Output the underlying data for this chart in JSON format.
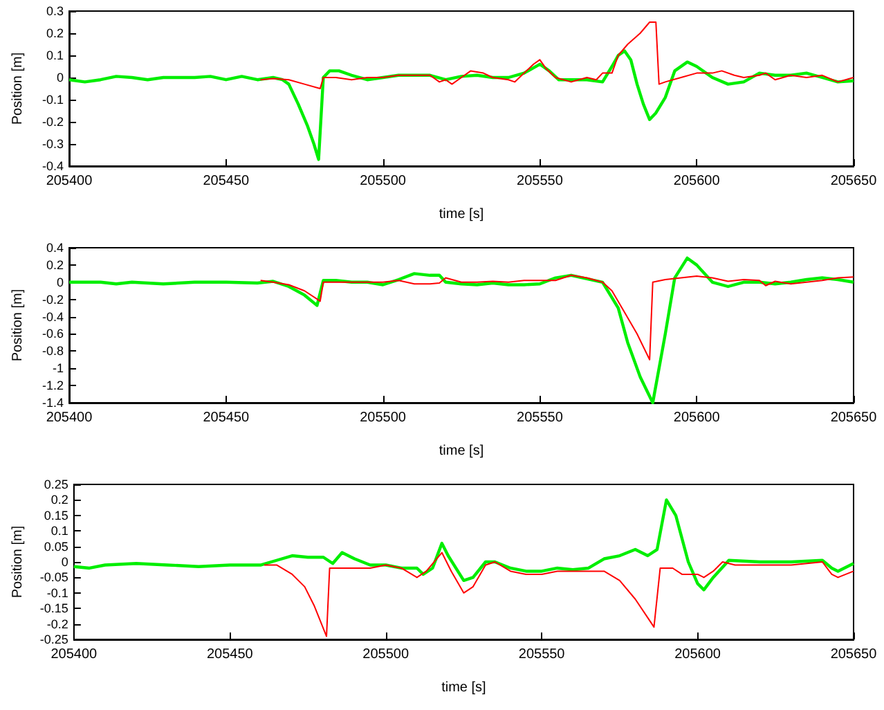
{
  "chart_data": [
    {
      "type": "line",
      "xlabel": "time [s]",
      "ylabel": "Position [m]",
      "xlim": [
        205400,
        205650
      ],
      "xticks": [
        205400,
        205450,
        205500,
        205550,
        205600,
        205650
      ],
      "ylim": [
        -0.4,
        0.3
      ],
      "yticks": [
        -0.4,
        -0.3,
        -0.2,
        -0.1,
        0,
        0.1,
        0.2,
        0.3
      ],
      "grid": false,
      "marker": "none",
      "series": [
        {
          "color": "#00ee00",
          "x": [
            205400,
            205405,
            205410,
            205415,
            205420,
            205425,
            205430,
            205440,
            205445,
            205450,
            205455,
            205460,
            205465,
            205468,
            205470,
            205473,
            205476,
            205478,
            205479.5,
            205481,
            205483,
            205486,
            205490,
            205495,
            205500,
            205505,
            205510,
            205515,
            205520,
            205525,
            205530,
            205535,
            205540,
            205545,
            205550,
            205553,
            205556,
            205560,
            205565,
            205570,
            205573,
            205575,
            205577,
            205579,
            205581,
            205583,
            205585,
            205587,
            205590,
            205593,
            205597,
            205600,
            205605,
            205610,
            205615,
            205620,
            205625,
            205630,
            205635,
            205640,
            205645,
            205650
          ],
          "values": [
            -0.01,
            -0.02,
            -0.01,
            0.005,
            0,
            -0.01,
            0,
            0,
            0.005,
            -0.01,
            0.005,
            -0.01,
            0,
            -0.01,
            -0.03,
            -0.12,
            -0.22,
            -0.3,
            -0.37,
            0,
            0.03,
            0.03,
            0.01,
            -0.01,
            0,
            0.01,
            0.01,
            0.01,
            -0.01,
            0.005,
            0.01,
            0,
            0,
            0.02,
            0.06,
            0.03,
            -0.01,
            -0.01,
            -0.01,
            -0.02,
            0.05,
            0.1,
            0.12,
            0.08,
            -0.03,
            -0.12,
            -0.19,
            -0.16,
            -0.09,
            0.03,
            0.07,
            0.05,
            0,
            -0.03,
            -0.02,
            0.02,
            0.01,
            0.01,
            0.02,
            0,
            -0.02,
            -0.015
          ]
        },
        {
          "color": "#ff0000",
          "x": [
            205461,
            205465,
            205470,
            205475,
            205480,
            205481,
            205485,
            205490,
            205495,
            205500,
            205505,
            205510,
            205515,
            205518,
            205520,
            205522,
            205525,
            205528,
            205532,
            205535,
            205540,
            205542,
            205545,
            205548,
            205550,
            205552,
            205555,
            205560,
            205565,
            205568,
            205570,
            205573,
            205575,
            205578,
            205582,
            205585,
            205587,
            205588,
            205590,
            205595,
            205600,
            205605,
            205608,
            205612,
            205615,
            205620,
            205622,
            205625,
            205630,
            205635,
            205640,
            205645,
            205650
          ],
          "values": [
            -0.01,
            -0.005,
            -0.01,
            -0.03,
            -0.05,
            0,
            0,
            -0.01,
            0,
            0,
            0.01,
            0.01,
            0.01,
            -0.02,
            -0.01,
            -0.03,
            0,
            0.03,
            0.02,
            0,
            -0.01,
            -0.02,
            0.02,
            0.06,
            0.08,
            0.04,
            0,
            -0.02,
            0,
            -0.01,
            0.02,
            0.02,
            0.1,
            0.15,
            0.2,
            0.25,
            0.25,
            -0.03,
            -0.02,
            0,
            0.02,
            0.02,
            0.03,
            0.01,
            0,
            0.01,
            0.02,
            -0.01,
            0.01,
            0,
            0.01,
            -0.02,
            0
          ]
        }
      ]
    },
    {
      "type": "line",
      "xlabel": "time [s]",
      "ylabel": "Position [m]",
      "xlim": [
        205400,
        205650
      ],
      "xticks": [
        205400,
        205450,
        205500,
        205550,
        205600,
        205650
      ],
      "ylim": [
        -1.4,
        0.4
      ],
      "yticks": [
        -1.4,
        -1.2,
        -1,
        -0.8,
        -0.6,
        -0.4,
        -0.2,
        0,
        0.2,
        0.4
      ],
      "grid": false,
      "marker": "none",
      "series": [
        {
          "color": "#00ee00",
          "x": [
            205400,
            205410,
            205415,
            205420,
            205430,
            205440,
            205450,
            205460,
            205465,
            205470,
            205475,
            205479,
            205481,
            205485,
            205490,
            205495,
            205500,
            205505,
            205510,
            205515,
            205518,
            205520,
            205525,
            205530,
            205535,
            205540,
            205545,
            205550,
            205555,
            205560,
            205565,
            205570,
            205575,
            205578,
            205582,
            205586,
            205590,
            205593,
            205597,
            205600,
            205605,
            205610,
            205615,
            205620,
            205625,
            205630,
            205635,
            205640,
            205645,
            205650
          ],
          "values": [
            0,
            0,
            -0.02,
            0,
            -0.02,
            0,
            0,
            -0.01,
            0.01,
            -0.05,
            -0.15,
            -0.27,
            0.02,
            0.02,
            0,
            0,
            -0.03,
            0.03,
            0.1,
            0.08,
            0.08,
            0,
            -0.02,
            -0.03,
            -0.01,
            -0.03,
            -0.03,
            -0.02,
            0.05,
            0.08,
            0.04,
            0,
            -0.3,
            -0.7,
            -1.1,
            -1.4,
            -0.6,
            0.05,
            0.28,
            0.2,
            0,
            -0.05,
            0,
            0,
            -0.02,
            0,
            0.03,
            0.05,
            0.03,
            0
          ]
        },
        {
          "color": "#ff0000",
          "x": [
            205461,
            205465,
            205470,
            205475,
            205480,
            205481,
            205485,
            205490,
            205495,
            205500,
            205505,
            205510,
            205515,
            205518,
            205520,
            205525,
            205530,
            205535,
            205540,
            205545,
            205550,
            205555,
            205560,
            205565,
            205570,
            205573,
            205577,
            205581,
            205585,
            205586,
            205590,
            205595,
            205600,
            205605,
            205610,
            205615,
            205620,
            205622,
            205625,
            205630,
            205635,
            205640,
            205645,
            205650
          ],
          "values": [
            0.02,
            0,
            -0.03,
            -0.1,
            -0.22,
            0,
            0,
            0,
            0,
            0,
            0.02,
            -0.02,
            -0.02,
            -0.01,
            0.05,
            0,
            0,
            0.01,
            0,
            0.02,
            0.02,
            0.02,
            0.08,
            0.05,
            0,
            -0.1,
            -0.35,
            -0.6,
            -0.9,
            0,
            0.03,
            0.05,
            0.07,
            0.05,
            0.01,
            0.03,
            0.02,
            -0.04,
            0.01,
            -0.02,
            0,
            0.02,
            0.05,
            0.06
          ]
        }
      ]
    },
    {
      "type": "line",
      "xlabel": "time [s]",
      "ylabel": "Position [m]",
      "xlim": [
        205400,
        205650
      ],
      "xticks": [
        205400,
        205450,
        205500,
        205550,
        205600,
        205650
      ],
      "ylim": [
        -0.25,
        0.25
      ],
      "yticks": [
        -0.25,
        -0.2,
        -0.15,
        -0.1,
        -0.05,
        0,
        0.05,
        0.1,
        0.15,
        0.2,
        0.25
      ],
      "grid": false,
      "marker": "none",
      "series": [
        {
          "color": "#00ee00",
          "x": [
            205400,
            205405,
            205410,
            205420,
            205430,
            205440,
            205450,
            205460,
            205465,
            205470,
            205475,
            205480,
            205483,
            205486,
            205490,
            205495,
            205500,
            205505,
            205510,
            205512,
            205515,
            205518,
            205520,
            205525,
            205528,
            205532,
            205535,
            205540,
            205545,
            205550,
            205555,
            205560,
            205565,
            205570,
            205575,
            205580,
            205584,
            205587,
            205590,
            205593,
            205597,
            205600,
            205602,
            205605,
            205610,
            205620,
            205630,
            205640,
            205643,
            205645,
            205650
          ],
          "values": [
            -0.015,
            -0.02,
            -0.01,
            -0.005,
            -0.01,
            -0.015,
            -0.01,
            -0.01,
            0.005,
            0.02,
            0.015,
            0.015,
            -0.005,
            0.03,
            0.01,
            -0.01,
            -0.01,
            -0.02,
            -0.02,
            -0.04,
            -0.02,
            0.06,
            0.02,
            -0.06,
            -0.05,
            0,
            0,
            -0.02,
            -0.03,
            -0.03,
            -0.02,
            -0.025,
            -0.02,
            0.01,
            0.02,
            0.04,
            0.02,
            0.04,
            0.2,
            0.15,
            0,
            -0.07,
            -0.09,
            -0.05,
            0.005,
            0,
            0,
            0.005,
            -0.02,
            -0.03,
            -0.005
          ]
        },
        {
          "color": "#ff0000",
          "x": [
            205461,
            205465,
            205470,
            205474,
            205477,
            205481,
            205482,
            205488,
            205495,
            205500,
            205505,
            205510,
            205513,
            205518,
            205521,
            205525,
            205528,
            205532,
            205535,
            205540,
            205545,
            205550,
            205555,
            205560,
            205565,
            205570,
            205575,
            205580,
            205584,
            205586,
            205588,
            205592,
            205595,
            205600,
            205602,
            205605,
            205608,
            205612,
            205620,
            205630,
            205640,
            205643,
            205645,
            205650
          ],
          "values": [
            -0.01,
            -0.01,
            -0.04,
            -0.08,
            -0.14,
            -0.24,
            -0.02,
            -0.02,
            -0.02,
            -0.01,
            -0.02,
            -0.05,
            -0.03,
            0.03,
            -0.03,
            -0.1,
            -0.08,
            -0.01,
            0,
            -0.03,
            -0.04,
            -0.04,
            -0.03,
            -0.03,
            -0.03,
            -0.03,
            -0.06,
            -0.12,
            -0.18,
            -0.21,
            -0.02,
            -0.02,
            -0.04,
            -0.04,
            -0.05,
            -0.03,
            0,
            -0.01,
            -0.01,
            -0.01,
            0,
            -0.04,
            -0.05,
            -0.03
          ]
        }
      ]
    }
  ]
}
